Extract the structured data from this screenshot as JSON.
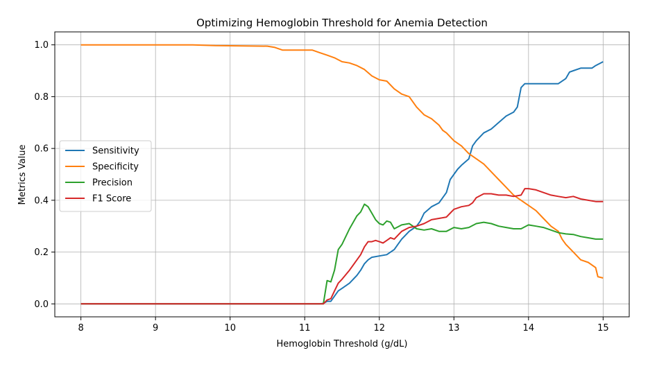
{
  "chart_data": {
    "type": "line",
    "title": "Optimizing Hemoglobin Threshold for Anemia Detection",
    "xlabel": "Hemoglobin Threshold (g/dL)",
    "ylabel": "Metrics Value",
    "xlim": [
      7.65,
      15.35
    ],
    "ylim": [
      -0.05,
      1.05
    ],
    "xticks": [
      "8",
      "9",
      "10",
      "11",
      "12",
      "13",
      "14",
      "15"
    ],
    "yticks": [
      "0.0",
      "0.2",
      "0.4",
      "0.6",
      "0.8",
      "1.0"
    ],
    "grid": true,
    "legend_position": "center-left",
    "series": [
      {
        "name": "Sensitivity",
        "color": "#1f77b4",
        "points": [
          [
            8,
            0
          ],
          [
            9,
            0
          ],
          [
            10,
            0
          ],
          [
            11,
            0
          ],
          [
            11.2,
            0
          ],
          [
            11.25,
            0.002
          ],
          [
            11.3,
            0.01
          ],
          [
            11.35,
            0.01
          ],
          [
            11.4,
            0.03
          ],
          [
            11.45,
            0.05
          ],
          [
            11.5,
            0.06
          ],
          [
            11.6,
            0.08
          ],
          [
            11.7,
            0.11
          ],
          [
            11.75,
            0.13
          ],
          [
            11.8,
            0.155
          ],
          [
            11.85,
            0.17
          ],
          [
            11.9,
            0.18
          ],
          [
            12.0,
            0.185
          ],
          [
            12.1,
            0.19
          ],
          [
            12.2,
            0.21
          ],
          [
            12.25,
            0.23
          ],
          [
            12.3,
            0.25
          ],
          [
            12.4,
            0.28
          ],
          [
            12.45,
            0.29
          ],
          [
            12.5,
            0.3
          ],
          [
            12.55,
            0.32
          ],
          [
            12.6,
            0.35
          ],
          [
            12.7,
            0.375
          ],
          [
            12.8,
            0.39
          ],
          [
            12.9,
            0.43
          ],
          [
            12.95,
            0.48
          ],
          [
            13.0,
            0.5
          ],
          [
            13.05,
            0.52
          ],
          [
            13.1,
            0.535
          ],
          [
            13.2,
            0.56
          ],
          [
            13.25,
            0.61
          ],
          [
            13.3,
            0.63
          ],
          [
            13.4,
            0.66
          ],
          [
            13.5,
            0.675
          ],
          [
            13.6,
            0.7
          ],
          [
            13.7,
            0.725
          ],
          [
            13.8,
            0.74
          ],
          [
            13.85,
            0.76
          ],
          [
            13.9,
            0.835
          ],
          [
            13.95,
            0.85
          ],
          [
            14.0,
            0.85
          ],
          [
            14.2,
            0.85
          ],
          [
            14.4,
            0.85
          ],
          [
            14.5,
            0.87
          ],
          [
            14.55,
            0.895
          ],
          [
            14.6,
            0.9
          ],
          [
            14.7,
            0.91
          ],
          [
            14.85,
            0.91
          ],
          [
            14.9,
            0.92
          ],
          [
            15.0,
            0.935
          ]
        ]
      },
      {
        "name": "Specificity",
        "color": "#ff7f0e",
        "points": [
          [
            8,
            1.0
          ],
          [
            9,
            1.0
          ],
          [
            9.5,
            1.0
          ],
          [
            9.8,
            0.997
          ],
          [
            10.5,
            0.995
          ],
          [
            10.6,
            0.99
          ],
          [
            10.7,
            0.98
          ],
          [
            11.1,
            0.98
          ],
          [
            11.2,
            0.97
          ],
          [
            11.3,
            0.96
          ],
          [
            11.4,
            0.95
          ],
          [
            11.5,
            0.935
          ],
          [
            11.6,
            0.93
          ],
          [
            11.7,
            0.92
          ],
          [
            11.8,
            0.905
          ],
          [
            11.9,
            0.88
          ],
          [
            12.0,
            0.865
          ],
          [
            12.1,
            0.86
          ],
          [
            12.2,
            0.83
          ],
          [
            12.3,
            0.81
          ],
          [
            12.4,
            0.8
          ],
          [
            12.5,
            0.76
          ],
          [
            12.6,
            0.73
          ],
          [
            12.7,
            0.715
          ],
          [
            12.8,
            0.69
          ],
          [
            12.85,
            0.67
          ],
          [
            12.9,
            0.66
          ],
          [
            13.0,
            0.63
          ],
          [
            13.1,
            0.61
          ],
          [
            13.2,
            0.58
          ],
          [
            13.3,
            0.56
          ],
          [
            13.4,
            0.54
          ],
          [
            13.5,
            0.51
          ],
          [
            13.6,
            0.48
          ],
          [
            13.7,
            0.45
          ],
          [
            13.8,
            0.42
          ],
          [
            13.9,
            0.4
          ],
          [
            14.0,
            0.38
          ],
          [
            14.1,
            0.36
          ],
          [
            14.2,
            0.33
          ],
          [
            14.3,
            0.3
          ],
          [
            14.4,
            0.28
          ],
          [
            14.45,
            0.25
          ],
          [
            14.5,
            0.23
          ],
          [
            14.6,
            0.2
          ],
          [
            14.7,
            0.17
          ],
          [
            14.8,
            0.16
          ],
          [
            14.9,
            0.14
          ],
          [
            14.93,
            0.105
          ],
          [
            15.0,
            0.1
          ]
        ]
      },
      {
        "name": "Precision",
        "color": "#2ca02c",
        "points": [
          [
            8,
            0
          ],
          [
            9,
            0
          ],
          [
            10,
            0
          ],
          [
            11,
            0
          ],
          [
            11.25,
            0
          ],
          [
            11.3,
            0.09
          ],
          [
            11.35,
            0.085
          ],
          [
            11.4,
            0.13
          ],
          [
            11.45,
            0.21
          ],
          [
            11.5,
            0.23
          ],
          [
            11.6,
            0.29
          ],
          [
            11.7,
            0.34
          ],
          [
            11.75,
            0.355
          ],
          [
            11.8,
            0.385
          ],
          [
            11.85,
            0.375
          ],
          [
            11.9,
            0.35
          ],
          [
            11.95,
            0.325
          ],
          [
            12.0,
            0.31
          ],
          [
            12.05,
            0.305
          ],
          [
            12.1,
            0.32
          ],
          [
            12.15,
            0.315
          ],
          [
            12.2,
            0.29
          ],
          [
            12.3,
            0.305
          ],
          [
            12.4,
            0.31
          ],
          [
            12.45,
            0.3
          ],
          [
            12.5,
            0.29
          ],
          [
            12.6,
            0.285
          ],
          [
            12.7,
            0.29
          ],
          [
            12.8,
            0.28
          ],
          [
            12.9,
            0.28
          ],
          [
            13.0,
            0.295
          ],
          [
            13.1,
            0.29
          ],
          [
            13.2,
            0.295
          ],
          [
            13.3,
            0.31
          ],
          [
            13.4,
            0.315
          ],
          [
            13.5,
            0.31
          ],
          [
            13.6,
            0.3
          ],
          [
            13.7,
            0.295
          ],
          [
            13.8,
            0.29
          ],
          [
            13.9,
            0.29
          ],
          [
            14.0,
            0.305
          ],
          [
            14.1,
            0.3
          ],
          [
            14.2,
            0.295
          ],
          [
            14.3,
            0.285
          ],
          [
            14.4,
            0.275
          ],
          [
            14.5,
            0.27
          ],
          [
            14.6,
            0.268
          ],
          [
            14.7,
            0.26
          ],
          [
            14.8,
            0.255
          ],
          [
            14.9,
            0.25
          ],
          [
            15.0,
            0.25
          ]
        ]
      },
      {
        "name": "F1 Score",
        "color": "#d62728",
        "points": [
          [
            8,
            0
          ],
          [
            9,
            0
          ],
          [
            10,
            0
          ],
          [
            11,
            0
          ],
          [
            11.25,
            0
          ],
          [
            11.3,
            0.015
          ],
          [
            11.35,
            0.02
          ],
          [
            11.4,
            0.05
          ],
          [
            11.45,
            0.08
          ],
          [
            11.5,
            0.095
          ],
          [
            11.6,
            0.13
          ],
          [
            11.7,
            0.17
          ],
          [
            11.75,
            0.19
          ],
          [
            11.8,
            0.22
          ],
          [
            11.85,
            0.24
          ],
          [
            11.9,
            0.24
          ],
          [
            11.95,
            0.245
          ],
          [
            12.0,
            0.24
          ],
          [
            12.05,
            0.235
          ],
          [
            12.1,
            0.245
          ],
          [
            12.15,
            0.255
          ],
          [
            12.2,
            0.25
          ],
          [
            12.25,
            0.265
          ],
          [
            12.3,
            0.28
          ],
          [
            12.4,
            0.295
          ],
          [
            12.5,
            0.3
          ],
          [
            12.6,
            0.31
          ],
          [
            12.7,
            0.325
          ],
          [
            12.8,
            0.33
          ],
          [
            12.9,
            0.335
          ],
          [
            12.95,
            0.35
          ],
          [
            13.0,
            0.365
          ],
          [
            13.1,
            0.375
          ],
          [
            13.2,
            0.38
          ],
          [
            13.25,
            0.39
          ],
          [
            13.3,
            0.41
          ],
          [
            13.4,
            0.425
          ],
          [
            13.5,
            0.425
          ],
          [
            13.6,
            0.42
          ],
          [
            13.7,
            0.42
          ],
          [
            13.8,
            0.415
          ],
          [
            13.9,
            0.42
          ],
          [
            13.95,
            0.445
          ],
          [
            14.0,
            0.445
          ],
          [
            14.1,
            0.44
          ],
          [
            14.2,
            0.43
          ],
          [
            14.3,
            0.42
          ],
          [
            14.4,
            0.415
          ],
          [
            14.5,
            0.41
          ],
          [
            14.6,
            0.415
          ],
          [
            14.7,
            0.405
          ],
          [
            14.8,
            0.4
          ],
          [
            14.9,
            0.395
          ],
          [
            15.0,
            0.395
          ]
        ]
      }
    ]
  }
}
